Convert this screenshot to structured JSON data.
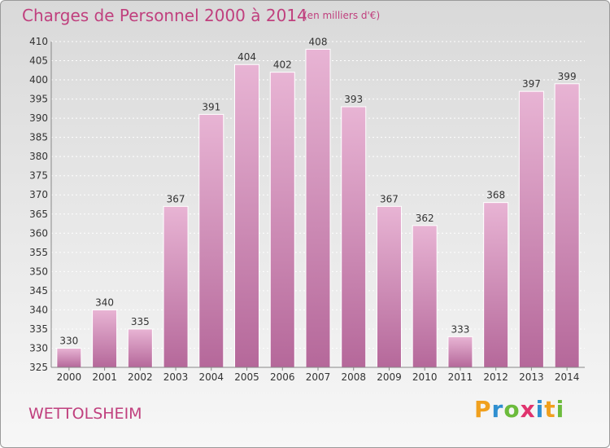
{
  "header": {
    "title": "Charges de Personnel 2000 à 2014",
    "subtitle": "(en milliers d'€)"
  },
  "commune": "WETTOLSHEIM",
  "logo": {
    "letters": [
      "P",
      "r",
      "o",
      "x",
      "i",
      "t",
      "i"
    ],
    "colors": [
      "#f0a01e",
      "#2f8fd0",
      "#6cbb3c",
      "#e0336e",
      "#2f8fd0",
      "#f0a01e",
      "#6cbb3c"
    ]
  },
  "colors": {
    "bar": "#d28cb8",
    "bar_light": "#e6b0d2",
    "text": "#c0407e"
  },
  "chart_data": {
    "type": "bar",
    "categories": [
      "2000",
      "2001",
      "2002",
      "2003",
      "2004",
      "2005",
      "2006",
      "2007",
      "2008",
      "2009",
      "2010",
      "2011",
      "2012",
      "2013",
      "2014"
    ],
    "values": [
      330,
      340,
      335,
      367,
      391,
      404,
      402,
      408,
      393,
      367,
      362,
      333,
      368,
      397,
      399
    ],
    "ylim": [
      325,
      410
    ],
    "yticks": [
      325,
      330,
      335,
      340,
      345,
      350,
      355,
      360,
      365,
      370,
      375,
      380,
      385,
      390,
      395,
      400,
      405,
      410
    ],
    "grid": true
  }
}
